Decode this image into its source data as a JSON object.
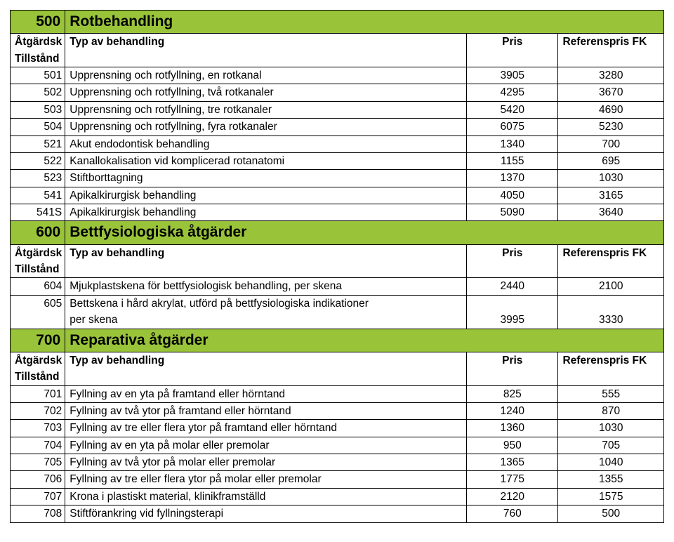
{
  "colors": {
    "section_bg": "#99c43a"
  },
  "sections": [
    {
      "code": "500",
      "title": "Rotbehandling",
      "header": {
        "col1_top": "Åtgärdsk",
        "col1_bot": "Tillstånd",
        "col2": "Typ av behandling",
        "col3": "Pris",
        "col4": "Referenspris FK"
      },
      "rows": [
        {
          "code": "501",
          "desc": "Upprensning och rotfyllning, en rotkanal",
          "pris": "3905",
          "ref": "3280"
        },
        {
          "code": "502",
          "desc": "Upprensning och rotfyllning, två rotkanaler",
          "pris": "4295",
          "ref": "3670"
        },
        {
          "code": "503",
          "desc": "Upprensning och rotfyllning, tre rotkanaler",
          "pris": "5420",
          "ref": "4690"
        },
        {
          "code": "504",
          "desc": "Upprensning och rotfyllning, fyra rotkanaler",
          "pris": "6075",
          "ref": "5230"
        },
        {
          "code": "521",
          "desc": "Akut endodontisk behandling",
          "pris": "1340",
          "ref": "700"
        },
        {
          "code": "522",
          "desc": "Kanallokalisation vid komplicerad rotanatomi",
          "pris": "1155",
          "ref": "695"
        },
        {
          "code": "523",
          "desc": "Stiftborttagning",
          "pris": "1370",
          "ref": "1030"
        },
        {
          "code": "541",
          "desc": "Apikalkirurgisk behandling",
          "pris": "4050",
          "ref": "3165"
        },
        {
          "code": "541S",
          "desc": "Apikalkirurgisk behandling",
          "pris": "5090",
          "ref": "3640"
        }
      ]
    },
    {
      "code": "600",
      "title": "Bettfysiologiska åtgärder",
      "header": {
        "col1_top": "Åtgärdsk",
        "col1_bot": "Tillstånd",
        "col2": "Typ av behandling",
        "col3": "Pris",
        "col4": "Referenspris FK"
      },
      "rows": [
        {
          "code": "604",
          "desc": "Mjukplastskena för bettfysiologisk behandling, per skena",
          "pris": "2440",
          "ref": "2100"
        },
        {
          "multiline": true,
          "code": "605",
          "desc_top": "Bettskena i hård akrylat, utförd på bettfysiologiska indikationer",
          "desc_bot": "per skena",
          "pris": "3995",
          "ref": "3330"
        }
      ]
    },
    {
      "code": "700",
      "title": "Reparativa åtgärder",
      "header": {
        "col1_top": "Åtgärdsk",
        "col1_bot": "Tillstånd",
        "col2": "Typ av behandling",
        "col3": "Pris",
        "col4": "Referenspris FK"
      },
      "rows": [
        {
          "code": "701",
          "desc": "Fyllning av en yta på framtand eller hörntand",
          "pris": "825",
          "ref": "555"
        },
        {
          "code": "702",
          "desc": "Fyllning av två ytor på framtand eller hörntand",
          "pris": "1240",
          "ref": "870"
        },
        {
          "code": "703",
          "desc": "Fyllning av tre eller flera ytor på framtand eller hörntand",
          "pris": "1360",
          "ref": "1030"
        },
        {
          "code": "704",
          "desc": "Fyllning av en yta på molar eller premolar",
          "pris": "950",
          "ref": "705"
        },
        {
          "code": "705",
          "desc": "Fyllning av två ytor på molar eller premolar",
          "pris": "1365",
          "ref": "1040"
        },
        {
          "code": "706",
          "desc": "Fyllning av tre eller flera ytor på molar eller premolar",
          "pris": "1775",
          "ref": "1355"
        },
        {
          "code": "707",
          "desc": "Krona i plastiskt material, klinikframställd",
          "pris": "2120",
          "ref": "1575"
        },
        {
          "code": "708",
          "desc": "Stiftförankring vid fyllningsterapi",
          "pris": "760",
          "ref": "500"
        }
      ]
    }
  ]
}
